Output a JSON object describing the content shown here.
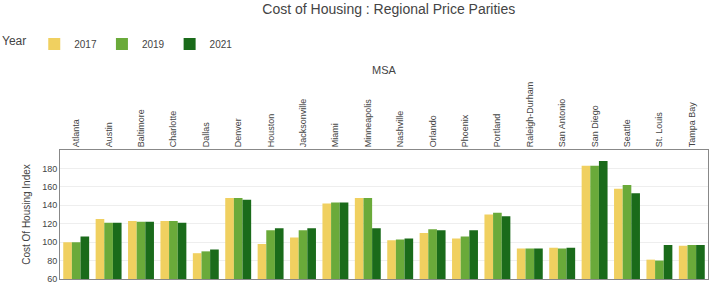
{
  "chart_data": {
    "type": "bar",
    "title": "Cost of Housing : Regional Price Parities",
    "xlabel": "MSA",
    "ylabel": "Cost Of Housing Index",
    "legend_title": "Year",
    "categories": [
      "Atlanta",
      "Austin",
      "Baltimore",
      "Charlotte",
      "Dallas",
      "Denver",
      "Houston",
      "Jacksonville",
      "Miami",
      "Minneapolis",
      "Nashville",
      "Orlando",
      "Phoenix",
      "Portland",
      "Raleigh-Durham",
      "San Antonio",
      "San Diego",
      "Seattle",
      "St. Louis",
      "Tampa Bay"
    ],
    "series": [
      {
        "name": "2017",
        "color": "#f0d060",
        "values": [
          100,
          125,
          123,
          123,
          88,
          148,
          98,
          105,
          142,
          148,
          102,
          110,
          104,
          130,
          93,
          94,
          183,
          158,
          81,
          96
        ]
      },
      {
        "name": "2019",
        "color": "#6aaa3a",
        "values": [
          100,
          121,
          122,
          123,
          90,
          148,
          113,
          113,
          143,
          148,
          103,
          114,
          106,
          132,
          93,
          93,
          183,
          162,
          80,
          97
        ]
      },
      {
        "name": "2021",
        "color": "#1a6b1a",
        "values": [
          106,
          121,
          122,
          121,
          92,
          146,
          115,
          115,
          143,
          115,
          104,
          113,
          113,
          128,
          93,
          94,
          188,
          153,
          97,
          97
        ]
      }
    ],
    "ylim": [
      60,
      200
    ],
    "yticks": [
      60,
      80,
      100,
      120,
      140,
      160,
      180
    ],
    "grid": true,
    "legend": "top left"
  }
}
